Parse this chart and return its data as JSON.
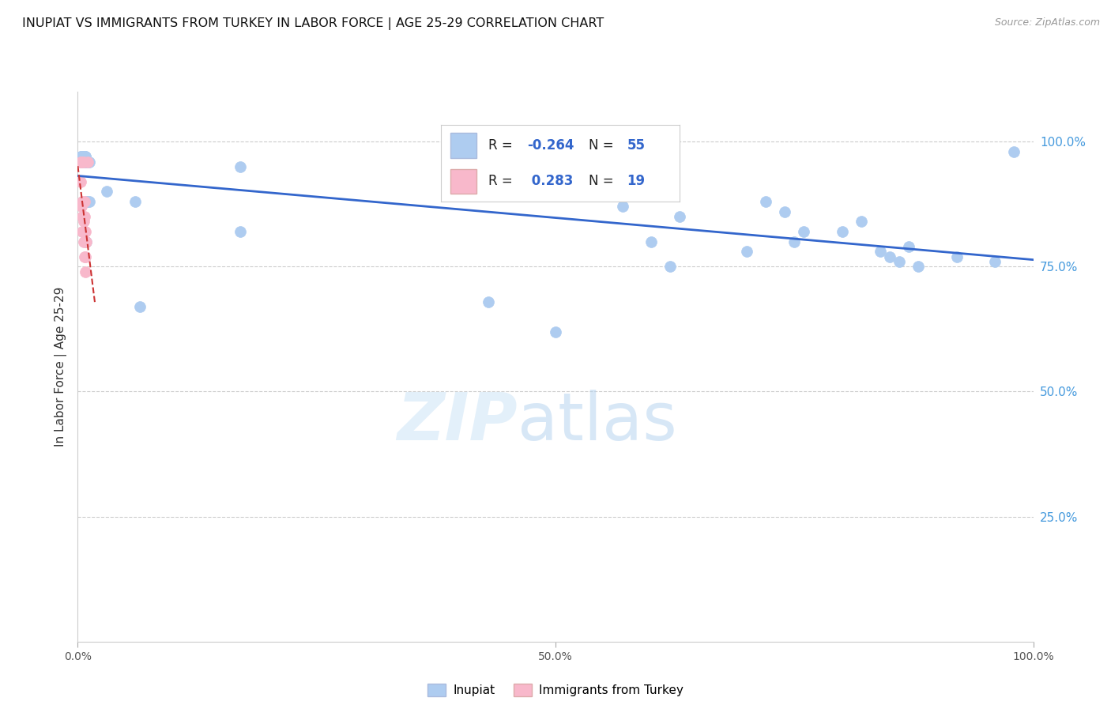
{
  "title": "INUPIAT VS IMMIGRANTS FROM TURKEY IN LABOR FORCE | AGE 25-29 CORRELATION CHART",
  "source": "Source: ZipAtlas.com",
  "ylabel": "In Labor Force | Age 25-29",
  "legend_label1": "Inupiat",
  "legend_label2": "Immigrants from Turkey",
  "r_blue": -0.264,
  "n_blue": 55,
  "r_pink": 0.283,
  "n_pink": 19,
  "blue_color": "#aeccf0",
  "pink_color": "#f8b8cb",
  "trendline_blue_color": "#3366cc",
  "trendline_pink_color": "#cc3333",
  "background_color": "#ffffff",
  "grid_color": "#cccccc",
  "right_label_color": "#4499dd",
  "axis_label_color": "#333333",
  "blue_x": [
    0.003,
    0.003,
    0.004,
    0.004,
    0.005,
    0.005,
    0.005,
    0.005,
    0.006,
    0.006,
    0.006,
    0.006,
    0.006,
    0.007,
    0.007,
    0.007,
    0.007,
    0.007,
    0.007,
    0.008,
    0.008,
    0.008,
    0.008,
    0.009,
    0.009,
    0.01,
    0.01,
    0.012,
    0.012,
    0.03,
    0.06,
    0.065,
    0.17,
    0.17,
    0.43,
    0.5,
    0.57,
    0.6,
    0.62,
    0.63,
    0.7,
    0.72,
    0.74,
    0.75,
    0.76,
    0.8,
    0.82,
    0.84,
    0.85,
    0.86,
    0.87,
    0.88,
    0.92,
    0.96,
    0.98
  ],
  "blue_y": [
    0.96,
    0.97,
    0.96,
    0.97,
    0.96,
    0.97,
    0.96,
    0.96,
    0.96,
    0.97,
    0.96,
    0.97,
    0.96,
    0.96,
    0.97,
    0.96,
    0.96,
    0.96,
    0.96,
    0.96,
    0.97,
    0.96,
    0.97,
    0.8,
    0.88,
    0.96,
    0.88,
    0.96,
    0.88,
    0.9,
    0.88,
    0.67,
    0.95,
    0.82,
    0.68,
    0.62,
    0.87,
    0.8,
    0.75,
    0.85,
    0.78,
    0.88,
    0.86,
    0.8,
    0.82,
    0.82,
    0.84,
    0.78,
    0.77,
    0.76,
    0.79,
    0.75,
    0.77,
    0.76,
    0.98
  ],
  "pink_x": [
    0.003,
    0.003,
    0.004,
    0.004,
    0.005,
    0.005,
    0.005,
    0.006,
    0.006,
    0.006,
    0.007,
    0.007,
    0.007,
    0.007,
    0.008,
    0.008,
    0.008,
    0.009,
    0.01
  ],
  "pink_y": [
    0.96,
    0.92,
    0.87,
    0.96,
    0.88,
    0.85,
    0.82,
    0.96,
    0.84,
    0.8,
    0.88,
    0.85,
    0.82,
    0.77,
    0.82,
    0.77,
    0.74,
    0.8,
    0.96
  ]
}
